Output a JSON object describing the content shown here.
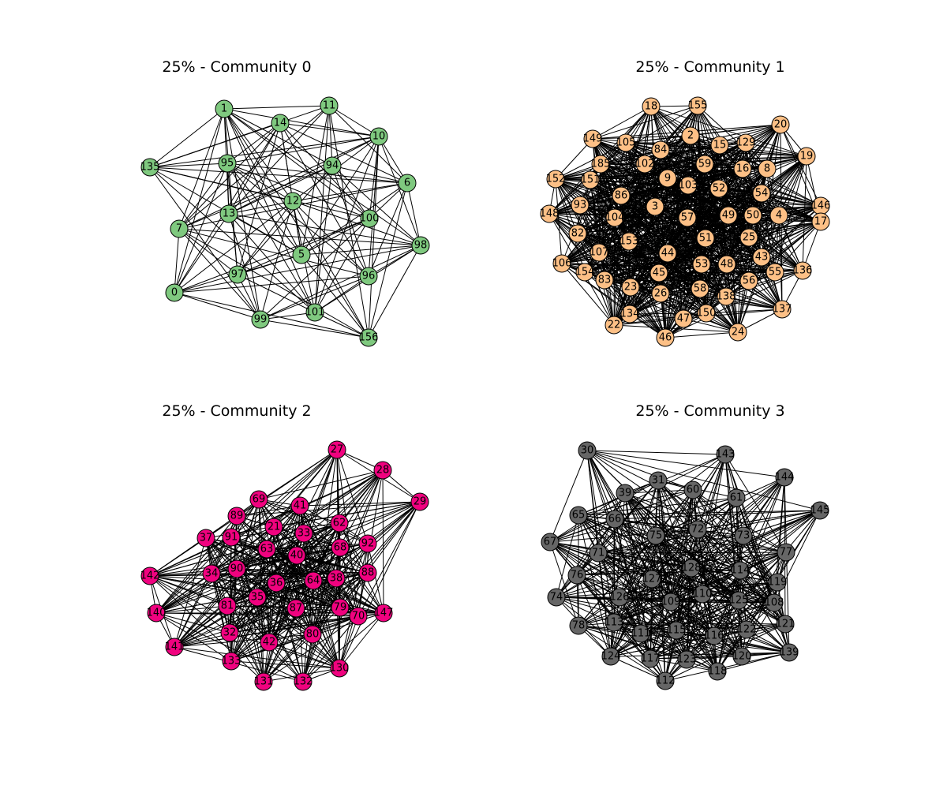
{
  "figure": {
    "panels": [
      {
        "title": "25% - Community 0",
        "node_color": "#7fc97f",
        "edge_density": 0.62,
        "nodes": [
          "1",
          "11",
          "14",
          "10",
          "135",
          "95",
          "94",
          "6",
          "12",
          "13",
          "100",
          "7",
          "98",
          "5",
          "97",
          "96",
          "0",
          "99",
          "101",
          "156"
        ]
      },
      {
        "title": "25% - Community 1",
        "node_color": "#fdc086",
        "edge_density": 0.55,
        "nodes": [
          "18",
          "155",
          "2",
          "20",
          "149",
          "105",
          "84",
          "15",
          "129",
          "19",
          "102",
          "59",
          "16",
          "8",
          "185",
          "9",
          "103",
          "52",
          "54",
          "152",
          "151",
          "86",
          "146",
          "148",
          "93",
          "3",
          "57",
          "49",
          "50",
          "4",
          "17",
          "104",
          "82",
          "153",
          "51",
          "25",
          "107",
          "44",
          "53",
          "48",
          "43",
          "106",
          "154",
          "83",
          "45",
          "55",
          "136",
          "23",
          "26",
          "58",
          "56",
          "138",
          "134",
          "150",
          "47",
          "137",
          "22",
          "46",
          "24"
        ]
      },
      {
        "title": "25% - Community 2",
        "node_color": "#f0027f",
        "edge_density": 0.6,
        "nodes": [
          "27",
          "28",
          "29",
          "69",
          "41",
          "89",
          "21",
          "33",
          "62",
          "37",
          "91",
          "92",
          "63",
          "68",
          "40",
          "90",
          "142",
          "34",
          "88",
          "36",
          "64",
          "38",
          "35",
          "140",
          "81",
          "87",
          "79",
          "70",
          "147",
          "32",
          "42",
          "80",
          "141",
          "133",
          "130",
          "131",
          "132"
        ]
      },
      {
        "title": "25% - Community 3",
        "node_color": "#666666",
        "edge_density": 0.6,
        "nodes": [
          "30",
          "143",
          "144",
          "31",
          "60",
          "39",
          "61",
          "145",
          "65",
          "66",
          "72",
          "75",
          "73",
          "67",
          "71",
          "77",
          "76",
          "128",
          "127",
          "114",
          "119",
          "74",
          "126",
          "110",
          "109",
          "125",
          "108",
          "78",
          "113",
          "121",
          "111",
          "115",
          "116",
          "122",
          "124",
          "117",
          "123",
          "120",
          "139",
          "118",
          "112"
        ]
      }
    ]
  }
}
